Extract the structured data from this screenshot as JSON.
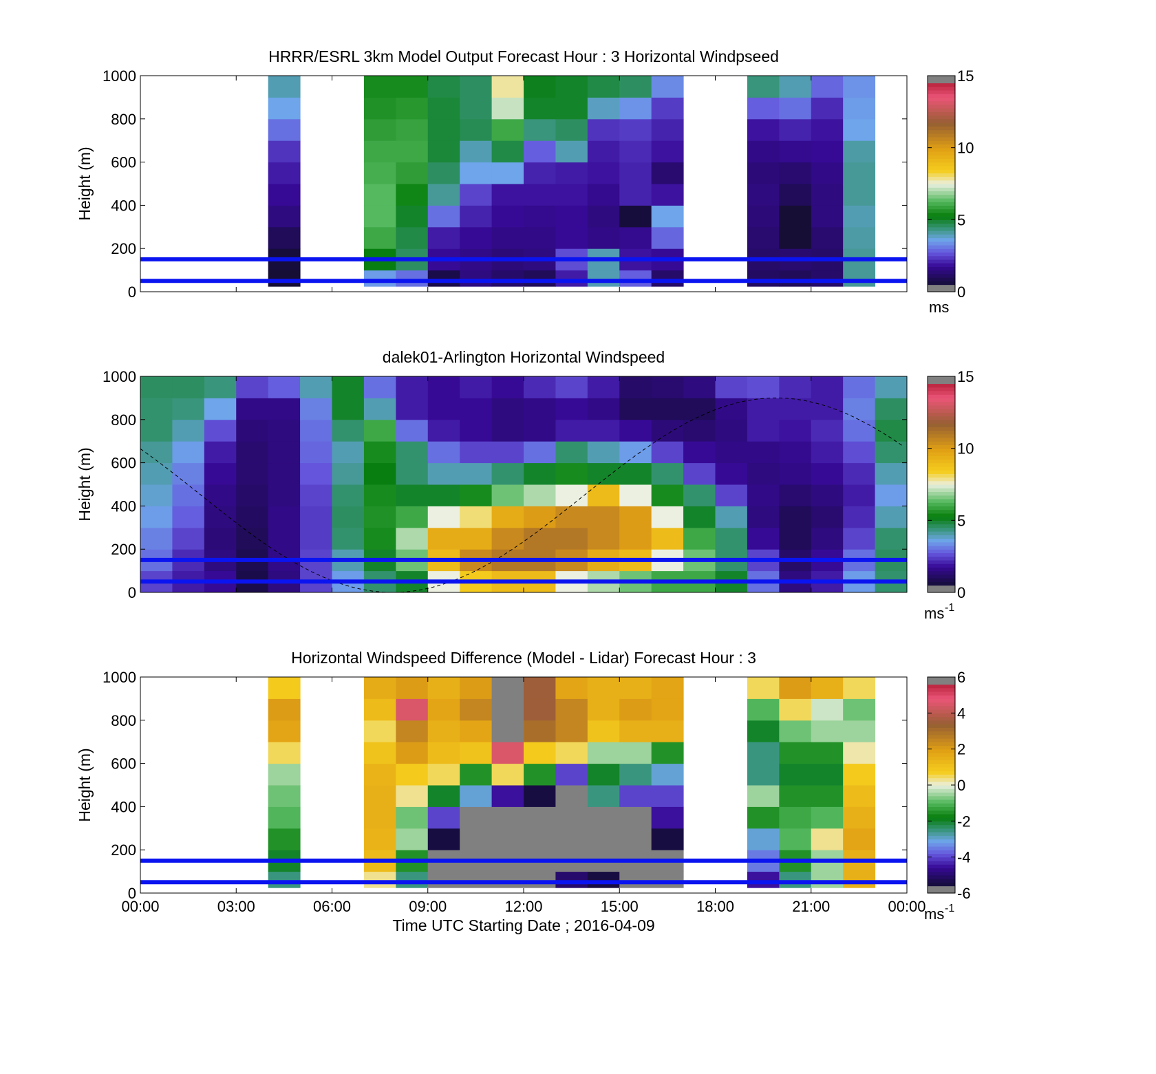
{
  "chart_data": [
    {
      "type": "heatmap",
      "title": "HRRR/ESRL 3km Model Output   Forecast Hour : 3 Horizontal Windpseed",
      "ylabel": "Height (m)",
      "xlabel": "",
      "ylim": [
        0,
        1000
      ],
      "yticks": [
        "0",
        "200",
        "400",
        "600",
        "800",
        "1000"
      ],
      "xlim_hours": [
        0,
        24
      ],
      "colorbar": {
        "ticks": [
          "0",
          "5",
          "10",
          "15"
        ],
        "range": [
          0,
          15
        ],
        "unit": "ms",
        "unit_sup": ""
      },
      "reference_lines_m": [
        50,
        150
      ],
      "height_levels_m": [
        50,
        150,
        250,
        350,
        450,
        550,
        650,
        750,
        850,
        950
      ],
      "columns": [
        {
          "t": 4.5,
          "values": [
            0.3,
            0.5,
            1.0,
            1.5,
            1.8,
            2.0,
            2.3,
            3.0,
            3.6,
            4.0
          ]
        },
        {
          "t": 7.5,
          "values": [
            3.5,
            5.2,
            6.0,
            6.3,
            6.3,
            6.1,
            6.0,
            5.8,
            5.6,
            5.5
          ]
        },
        {
          "t": 8.5,
          "values": [
            3.0,
            4.6,
            4.8,
            5.0,
            5.4,
            5.8,
            6.0,
            5.9,
            5.7,
            5.5
          ]
        },
        {
          "t": 9.5,
          "values": [
            0.8,
            1.8,
            2.0,
            3.0,
            4.2,
            4.6,
            4.9,
            4.9,
            4.9,
            4.8
          ]
        },
        {
          "t": 10.5,
          "values": [
            1.5,
            1.6,
            1.8,
            2.1,
            2.5,
            3.6,
            4.0,
            4.7,
            4.6,
            4.6
          ]
        },
        {
          "t": 11.5,
          "values": [
            1.2,
            1.4,
            1.6,
            1.8,
            1.9,
            3.6,
            4.8,
            6.0,
            7.2,
            7.8
          ]
        },
        {
          "t": 12.5,
          "values": [
            1.0,
            1.5,
            1.6,
            1.7,
            1.9,
            2.1,
            2.8,
            4.4,
            5.0,
            5.1
          ]
        },
        {
          "t": 13.5,
          "values": [
            2.0,
            2.6,
            1.8,
            1.8,
            1.9,
            2.0,
            4.0,
            4.6,
            5.0,
            5.0
          ]
        },
        {
          "t": 14.5,
          "values": [
            4.0,
            4.0,
            1.6,
            1.5,
            1.7,
            1.9,
            2.0,
            2.3,
            3.9,
            4.8
          ]
        },
        {
          "t": 15.5,
          "values": [
            2.8,
            1.9,
            1.7,
            0.5,
            2.1,
            2.1,
            2.2,
            2.4,
            3.4,
            4.6
          ]
        },
        {
          "t": 16.5,
          "values": [
            1.2,
            1.8,
            2.9,
            3.6,
            1.9,
            1.3,
            1.9,
            2.1,
            2.4,
            3.3
          ]
        },
        {
          "t": 19.5,
          "values": [
            1.1,
            1.2,
            1.3,
            1.4,
            1.5,
            1.4,
            1.6,
            1.9,
            2.8,
            4.4
          ]
        },
        {
          "t": 20.5,
          "values": [
            1.0,
            1.3,
            0.3,
            0.3,
            1.0,
            1.3,
            1.7,
            2.1,
            3.0,
            4.0
          ]
        },
        {
          "t": 21.5,
          "values": [
            1.2,
            1.2,
            1.3,
            1.5,
            1.5,
            1.6,
            1.8,
            1.9,
            2.2,
            2.9
          ]
        },
        {
          "t": 22.5,
          "values": [
            4.2,
            4.2,
            4.1,
            4.0,
            4.2,
            4.2,
            4.1,
            3.6,
            3.5,
            3.4
          ]
        }
      ]
    },
    {
      "type": "heatmap",
      "title": "dalek01-Arlington  Horizontal Windspeed",
      "ylabel": "Height (m)",
      "xlabel": "",
      "ylim": [
        0,
        1000
      ],
      "yticks": [
        "0",
        "200",
        "400",
        "600",
        "800",
        "1000"
      ],
      "xlim_hours": [
        0,
        24
      ],
      "colorbar": {
        "ticks": [
          "0",
          "5",
          "10",
          "15"
        ],
        "range": [
          0,
          15
        ],
        "unit": "ms",
        "unit_sup": "-1"
      },
      "reference_lines_m": [
        50,
        150
      ],
      "hours": [
        0.5,
        1.5,
        2.5,
        3.5,
        4.5,
        5.5,
        6.5,
        7.5,
        8.5,
        9.5,
        10.5,
        11.5,
        12.5,
        13.5,
        14.5,
        15.5,
        16.5,
        17.5,
        18.5,
        19.5,
        20.5,
        21.5,
        22.5,
        23.5
      ],
      "height_levels_m": [
        50,
        150,
        250,
        350,
        450,
        550,
        650,
        750,
        850,
        950
      ],
      "values": [
        [
          2.5,
          3.0,
          3.2,
          3.5,
          3.8,
          4.0,
          4.2,
          4.5,
          4.5,
          4.6
        ],
        [
          2.0,
          2.2,
          2.5,
          2.8,
          3.0,
          3.2,
          3.5,
          4.0,
          4.4,
          4.6
        ],
        [
          1.8,
          1.5,
          1.4,
          1.5,
          1.6,
          1.8,
          2.0,
          2.6,
          3.6,
          4.4
        ],
        [
          0.8,
          0.9,
          1.0,
          1.1,
          1.2,
          1.3,
          1.3,
          1.4,
          1.6,
          2.5
        ],
        [
          1.5,
          1.6,
          1.6,
          1.6,
          1.5,
          1.5,
          1.5,
          1.5,
          1.6,
          2.8
        ],
        [
          2.5,
          2.5,
          2.4,
          2.4,
          2.5,
          2.7,
          2.9,
          3.0,
          3.2,
          4.0
        ],
        [
          3.5,
          4.0,
          4.5,
          4.6,
          4.5,
          4.2,
          4.0,
          4.5,
          5.0,
          5.0
        ],
        [
          4.5,
          5.0,
          5.5,
          5.6,
          5.5,
          5.2,
          5.5,
          6.0,
          4.0,
          3.0
        ],
        [
          5.0,
          6.5,
          7.0,
          6.0,
          5.0,
          4.5,
          4.5,
          3.0,
          2.0,
          2.0
        ],
        [
          7.5,
          9.0,
          9.5,
          7.5,
          5.0,
          4.0,
          3.0,
          2.0,
          1.8,
          1.8
        ],
        [
          8.5,
          10.5,
          9.5,
          8.0,
          5.5,
          4.0,
          2.5,
          1.8,
          1.8,
          2.0
        ],
        [
          9.0,
          11.0,
          10.5,
          9.5,
          6.5,
          4.5,
          2.5,
          1.5,
          1.5,
          1.8
        ],
        [
          9.0,
          11.0,
          11.0,
          10.0,
          7.0,
          5.0,
          3.0,
          1.6,
          1.6,
          2.2
        ],
        [
          7.5,
          10.5,
          11.0,
          10.5,
          7.5,
          5.5,
          4.5,
          2.0,
          1.8,
          2.5
        ],
        [
          7.0,
          9.5,
          10.5,
          10.5,
          9.0,
          5.0,
          4.0,
          2.0,
          1.6,
          2.0
        ],
        [
          6.5,
          9.0,
          10.0,
          10.0,
          7.5,
          5.0,
          3.5,
          1.8,
          1.0,
          1.2
        ],
        [
          6.0,
          7.5,
          9.0,
          7.5,
          5.5,
          4.5,
          2.5,
          1.4,
          1.0,
          1.3
        ],
        [
          6.0,
          6.5,
          6.0,
          5.0,
          4.5,
          2.5,
          1.8,
          1.3,
          1.0,
          1.5
        ],
        [
          5.0,
          4.5,
          4.5,
          4.0,
          2.5,
          1.8,
          1.6,
          1.5,
          1.6,
          2.5
        ],
        [
          3.0,
          2.5,
          1.8,
          1.5,
          1.6,
          1.5,
          1.6,
          2.0,
          2.0,
          2.6
        ],
        [
          1.5,
          1.2,
          1.0,
          1.0,
          1.3,
          1.6,
          1.7,
          1.9,
          2.0,
          2.2
        ],
        [
          2.0,
          1.8,
          1.5,
          1.3,
          1.5,
          1.8,
          2.0,
          2.2,
          2.0,
          2.0
        ],
        [
          3.5,
          3.0,
          2.5,
          2.2,
          2.0,
          2.2,
          2.6,
          3.0,
          3.2,
          3.0
        ],
        [
          4.5,
          4.6,
          4.5,
          4.0,
          3.5,
          4.0,
          4.5,
          4.8,
          4.6,
          4.0
        ]
      ]
    },
    {
      "type": "heatmap",
      "title": "Horizontal Windspeed Difference (Model - Lidar) Forecast Hour : 3",
      "ylabel": "Height (m)",
      "xlabel": "Time UTC  Starting Date ; 2016-04-09",
      "xticks": [
        "00:00",
        "03:00",
        "06:00",
        "09:00",
        "12:00",
        "15:00",
        "18:00",
        "21:00",
        "00:00"
      ],
      "ylim": [
        0,
        1000
      ],
      "yticks": [
        "0",
        "200",
        "400",
        "600",
        "800",
        "1000"
      ],
      "xlim_hours": [
        0,
        24
      ],
      "colorbar": {
        "ticks": [
          "-6",
          "-4",
          "-2",
          "0",
          "2",
          "4",
          "6"
        ],
        "range": [
          -6,
          6
        ],
        "unit": "ms",
        "unit_sup": "-1"
      },
      "reference_lines_m": [
        50,
        150
      ],
      "height_levels_m": [
        50,
        150,
        250,
        350,
        450,
        550,
        650,
        750,
        850,
        950
      ],
      "columns": [
        {
          "t": 4.5,
          "values": [
            -2.5,
            -2.0,
            -1.5,
            -1.0,
            -0.8,
            -0.5,
            0.5,
            1.8,
            2.0,
            0.8
          ]
        },
        {
          "t": 7.5,
          "values": [
            0.3,
            1.2,
            1.4,
            1.5,
            1.5,
            1.4,
            1.0,
            0.5,
            1.2,
            1.6
          ]
        },
        {
          "t": 8.5,
          "values": [
            -2.5,
            -1.5,
            -0.5,
            -0.8,
            0.3,
            0.8,
            2.0,
            2.5,
            4.5,
            2.0
          ]
        },
        {
          "t": 9.5,
          "values": [
            -6.5,
            -6.5,
            -5.5,
            -4.0,
            -2.0,
            0.5,
            1.2,
            1.5,
            1.8,
            1.5
          ]
        },
        {
          "t": 10.5,
          "values": [
            -6.5,
            -6.5,
            -6.5,
            -6.5,
            -3.0,
            -1.5,
            1.0,
            1.8,
            2.5,
            2.0
          ]
        },
        {
          "t": 11.5,
          "values": [
            -6.5,
            -6.5,
            -6.5,
            -6.5,
            -4.5,
            0.5,
            4.5,
            -6.5,
            -6.5,
            -6.5
          ]
        },
        {
          "t": 12.5,
          "values": [
            -6.5,
            -6.5,
            -6.5,
            -6.5,
            -5.5,
            -1.5,
            0.8,
            3.0,
            3.5,
            3.5
          ]
        },
        {
          "t": 13.5,
          "values": [
            -5.0,
            -6.5,
            -6.5,
            -6.5,
            -6.5,
            -4.0,
            0.5,
            2.5,
            2.5,
            1.8
          ]
        },
        {
          "t": 14.5,
          "values": [
            -5.5,
            -6.5,
            -6.5,
            -6.5,
            -2.5,
            -2.0,
            -0.5,
            1.0,
            1.5,
            1.5
          ]
        },
        {
          "t": 15.5,
          "values": [
            -6.5,
            -6.5,
            -6.5,
            -6.5,
            -4.0,
            -2.5,
            -0.5,
            1.5,
            2.0,
            1.5
          ]
        },
        {
          "t": 16.5,
          "values": [
            -6.5,
            -6.5,
            -5.5,
            -4.5,
            -4.0,
            -3.0,
            -1.5,
            1.5,
            1.8,
            1.8
          ]
        },
        {
          "t": 19.5,
          "values": [
            -4.5,
            -3.5,
            -3.0,
            -1.5,
            -0.5,
            -2.5,
            -2.5,
            -2.0,
            -1.0,
            0.5
          ]
        },
        {
          "t": 20.5,
          "values": [
            -2.5,
            -1.5,
            -1.0,
            -1.2,
            -1.5,
            -2.0,
            -1.5,
            -0.8,
            0.5,
            2.0
          ]
        },
        {
          "t": 21.5,
          "values": [
            -0.5,
            -0.5,
            0.3,
            -1.0,
            -1.5,
            -2.0,
            -1.5,
            -0.5,
            -0.2,
            1.5
          ]
        },
        {
          "t": 22.5,
          "values": [
            1.5,
            1.5,
            1.8,
            1.5,
            1.2,
            0.8,
            0.2,
            -0.5,
            -0.8,
            0.5
          ]
        }
      ]
    }
  ]
}
